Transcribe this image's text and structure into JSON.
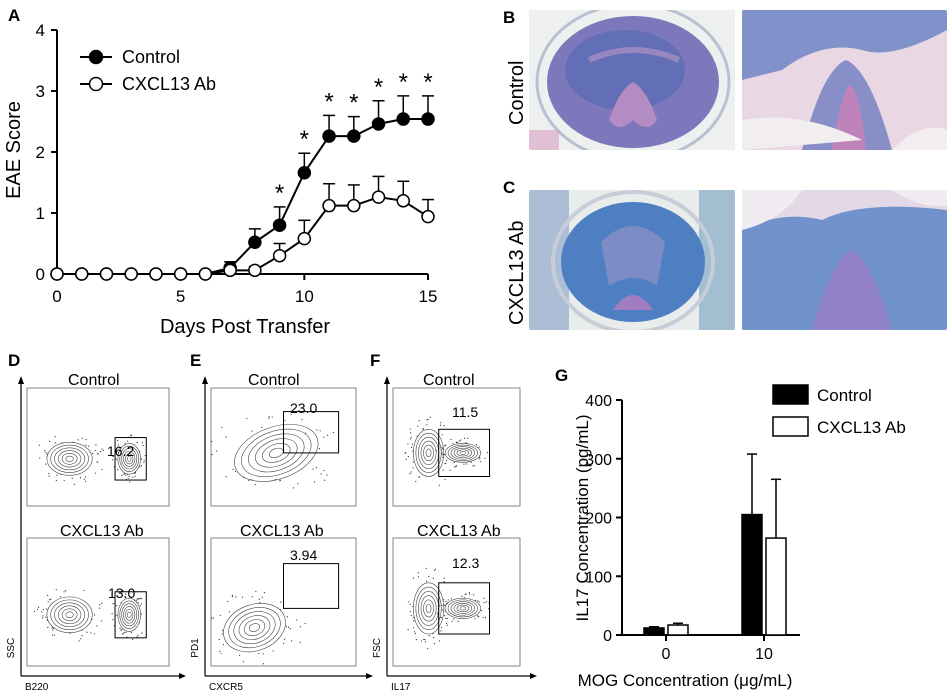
{
  "figure": {
    "panels": {
      "A": "A",
      "B": "B",
      "C": "C",
      "D": "D",
      "E": "E",
      "F": "F",
      "G": "G"
    },
    "histology": {
      "row_b_label": "Control",
      "row_c_label": "CXCL13 Ab"
    },
    "flow": {
      "D": {
        "top_title": "Control",
        "bottom_title": "CXCL13 Ab",
        "top_gate": "16.2",
        "bottom_gate": "13.0",
        "x_axis": "B220",
        "y_axis": "SSC"
      },
      "E": {
        "top_title": "Control",
        "bottom_title": "CXCL13 Ab",
        "top_gate": "23.0",
        "bottom_gate": "3.94",
        "x_axis": "CXCR5",
        "y_axis": "PD1"
      },
      "F": {
        "top_title": "Control",
        "bottom_title": "CXCL13 Ab",
        "top_gate": "11.5",
        "bottom_gate": "12.3",
        "x_axis": "IL17",
        "y_axis": "FSC"
      }
    },
    "colors": {
      "control": "#000000",
      "antibody": "#ffffff",
      "stain_blue": "#4a6fb5",
      "stain_pink": "#d99ac0"
    }
  },
  "chart_data": [
    {
      "id": "A",
      "type": "line",
      "xlabel": "Days Post Transfer",
      "ylabel": "EAE Score",
      "xlim": [
        0,
        15
      ],
      "ylim": [
        0,
        4
      ],
      "xticks": [
        "0",
        "5",
        "10",
        "15"
      ],
      "yticks": [
        "0",
        "1",
        "2",
        "3",
        "4"
      ],
      "x": [
        0,
        1,
        2,
        3,
        4,
        5,
        6,
        7,
        8,
        9,
        10,
        11,
        12,
        13,
        14,
        15
      ],
      "series": [
        {
          "name": "Control",
          "values": [
            0,
            0,
            0,
            0,
            0,
            0,
            0,
            0.1,
            0.52,
            0.8,
            1.66,
            2.26,
            2.26,
            2.46,
            2.54,
            2.54
          ],
          "errors": [
            0,
            0,
            0,
            0,
            0,
            0,
            0,
            0.1,
            0.22,
            0.3,
            0.32,
            0.34,
            0.32,
            0.38,
            0.38,
            0.38
          ]
        },
        {
          "name": "CXCL13 Ab",
          "values": [
            0,
            0,
            0,
            0,
            0,
            0,
            0,
            0.06,
            0.06,
            0.3,
            0.58,
            1.12,
            1.12,
            1.26,
            1.2,
            0.94
          ],
          "errors": [
            0,
            0,
            0,
            0,
            0,
            0,
            0,
            0.06,
            0.06,
            0.2,
            0.3,
            0.36,
            0.34,
            0.34,
            0.32,
            0.28
          ]
        }
      ],
      "significance_days": [
        9,
        10,
        11,
        12,
        13,
        14,
        15
      ],
      "significance_mark": "*"
    },
    {
      "id": "G",
      "type": "bar",
      "xlabel": "MOG Concentration (μg/mL)",
      "ylabel": "IL17 Concentration (pg/mL)",
      "ylim": [
        0,
        400
      ],
      "yticks": [
        "0",
        "100",
        "200",
        "300",
        "400"
      ],
      "categories": [
        "0",
        "10"
      ],
      "series": [
        {
          "name": "Control",
          "values": [
            12,
            205
          ],
          "errors": [
            2,
            103
          ]
        },
        {
          "name": "CXCL13 Ab",
          "values": [
            17,
            165
          ],
          "errors": [
            3,
            100
          ]
        }
      ]
    }
  ]
}
